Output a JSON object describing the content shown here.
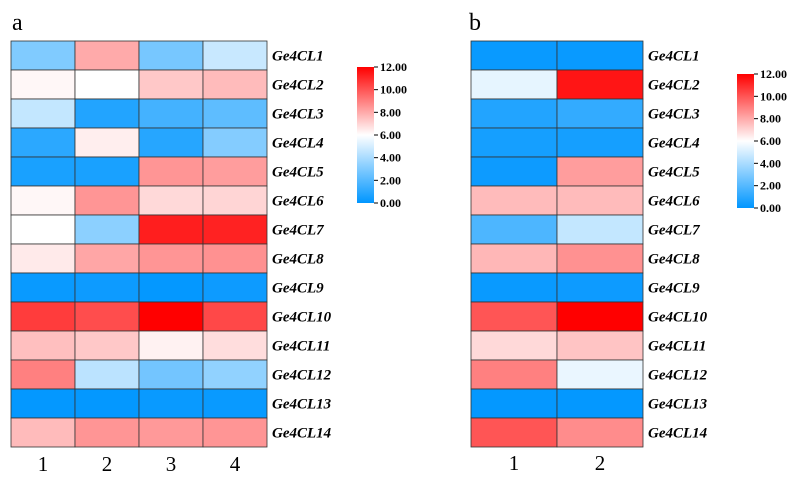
{
  "colors": {
    "low": "#0096FF",
    "mid": "#FFFFFF",
    "high": "#FF0000"
  },
  "chart_data": [
    {
      "type": "heatmap",
      "panel_label": "a",
      "columns": [
        "1",
        "2",
        "3",
        "4"
      ],
      "rows": [
        "Ge4CL1",
        "Ge4CL2",
        "Ge4CL3",
        "Ge4CL4",
        "Ge4CL5",
        "Ge4CL6",
        "Ge4CL7",
        "Ge4CL8",
        "Ge4CL9",
        "Ge4CL10",
        "Ge4CL11",
        "Ge4CL12",
        "Ge4CL13",
        "Ge4CL14"
      ],
      "values": [
        [
          3.0,
          8.0,
          2.8,
          4.7
        ],
        [
          6.2,
          6.0,
          7.3,
          7.6
        ],
        [
          4.6,
          0.8,
          1.6,
          2.2
        ],
        [
          1.0,
          6.4,
          0.9,
          3.1
        ],
        [
          0.6,
          0.6,
          8.5,
          8.3
        ],
        [
          6.2,
          8.5,
          6.9,
          7.0
        ],
        [
          6.0,
          3.3,
          11.3,
          11.2
        ],
        [
          6.5,
          8.1,
          8.5,
          8.6
        ],
        [
          0.2,
          0.3,
          0.1,
          0.3
        ],
        [
          10.6,
          10.2,
          12.0,
          10.3
        ],
        [
          7.5,
          7.3,
          6.3,
          6.8
        ],
        [
          9.0,
          4.4,
          2.7,
          3.4
        ],
        [
          0.1,
          0.1,
          0.2,
          0.2
        ],
        [
          7.6,
          8.5,
          8.4,
          8.5
        ]
      ],
      "colorbar": {
        "range": [
          0,
          12
        ],
        "ticks": [
          "0.00",
          "2.00",
          "4.00",
          "6.00",
          "8.00",
          "10.00",
          "12.00"
        ]
      }
    },
    {
      "type": "heatmap",
      "panel_label": "b",
      "columns": [
        "1",
        "2"
      ],
      "rows": [
        "Ge4CL1",
        "Ge4CL2",
        "Ge4CL3",
        "Ge4CL4",
        "Ge4CL5",
        "Ge4CL6",
        "Ge4CL7",
        "Ge4CL8",
        "Ge4CL9",
        "Ge4CL10",
        "Ge4CL11",
        "Ge4CL12",
        "Ge4CL13",
        "Ge4CL14"
      ],
      "values": [
        [
          0.2,
          0.2
        ],
        [
          5.4,
          11.5
        ],
        [
          0.8,
          1.2
        ],
        [
          0.5,
          0.5
        ],
        [
          0.3,
          8.3
        ],
        [
          7.6,
          7.6
        ],
        [
          1.8,
          4.6
        ],
        [
          7.7,
          8.6
        ],
        [
          0.2,
          0.3
        ],
        [
          10.0,
          12.0
        ],
        [
          6.9,
          7.4
        ],
        [
          9.0,
          5.5
        ],
        [
          0.1,
          0.1
        ],
        [
          10.0,
          8.7
        ]
      ],
      "colorbar": {
        "range": [
          0,
          12
        ],
        "ticks": [
          "0.00",
          "2.00",
          "4.00",
          "6.00",
          "8.00",
          "10.00",
          "12.00"
        ]
      }
    }
  ]
}
